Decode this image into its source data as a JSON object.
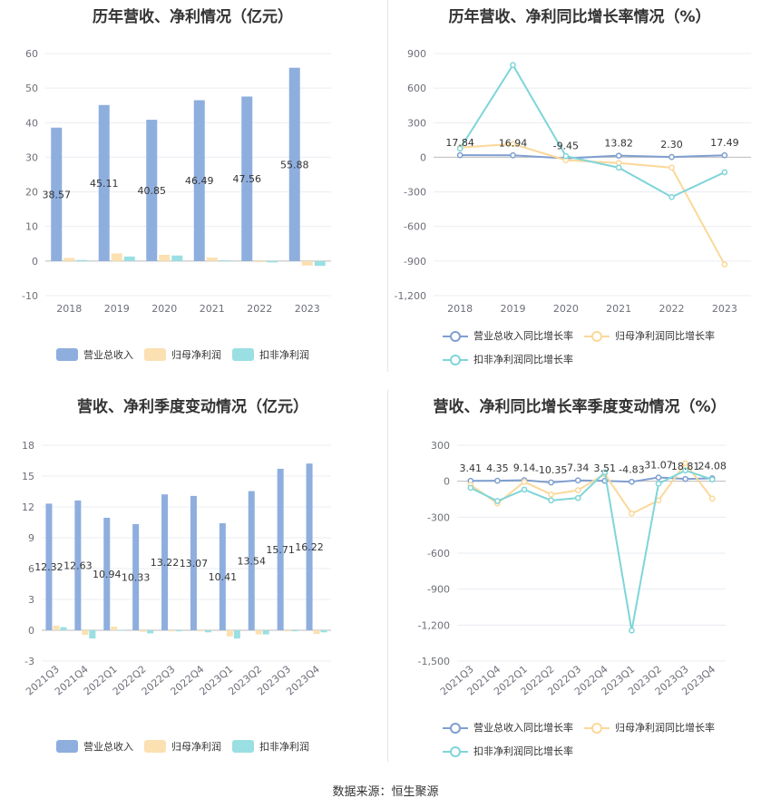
{
  "source_note": "数据来源：恒生聚源",
  "chart_data": [
    {
      "id": "c1",
      "type": "bar",
      "title": "历年营收、净利情况（亿元）",
      "categories": [
        "2018",
        "2019",
        "2020",
        "2021",
        "2022",
        "2023"
      ],
      "ylim": [
        -10,
        60
      ],
      "yticks": [
        -10,
        0,
        10,
        20,
        30,
        40,
        50,
        60
      ],
      "series": [
        {
          "name": "营业总收入",
          "color": "#8eaede",
          "values": [
            38.57,
            45.11,
            40.85,
            46.49,
            47.56,
            55.88
          ],
          "labels": [
            "38.57",
            "45.11",
            "40.85",
            "46.49",
            "47.56",
            "55.88"
          ]
        },
        {
          "name": "归母净利润",
          "color": "#fbe0b2",
          "values": [
            0.9,
            2.2,
            1.8,
            1.0,
            -0.3,
            -1.3
          ]
        },
        {
          "name": "扣非净利润",
          "color": "#9adfe2",
          "values": [
            0.3,
            1.3,
            1.6,
            0.2,
            -0.4,
            -1.4
          ]
        }
      ],
      "legend": "bottom"
    },
    {
      "id": "c2",
      "type": "line",
      "title": "历年营收、净利同比增长率情况（%）",
      "categories": [
        "2018",
        "2019",
        "2020",
        "2021",
        "2022",
        "2023"
      ],
      "ylim": [
        -1200,
        900
      ],
      "yticks": [
        -1200,
        -900,
        -600,
        -300,
        0,
        300,
        600,
        900
      ],
      "series": [
        {
          "name": "营业总收入同比增长率",
          "color": "#7f9fd0",
          "values": [
            17.84,
            16.94,
            -9.45,
            13.82,
            2.3,
            17.49
          ],
          "labels": [
            "17.84",
            "16.94",
            "-9.45",
            "13.82",
            "2.30",
            "17.49"
          ]
        },
        {
          "name": "归母净利润同比增长率",
          "color": "#fbd89a",
          "values": [
            85,
            115,
            -25,
            -50,
            -90,
            -930
          ]
        },
        {
          "name": "扣非净利润同比增长率",
          "color": "#7fd5d8",
          "values": [
            75,
            800,
            10,
            -90,
            -345,
            -130
          ]
        }
      ],
      "legend": "bottom"
    },
    {
      "id": "c3",
      "type": "bar",
      "title": "营收、净利季度变动情况（亿元）",
      "categories": [
        "2021Q3",
        "2021Q4",
        "2022Q1",
        "2022Q2",
        "2022Q3",
        "2022Q4",
        "2023Q1",
        "2023Q2",
        "2023Q3",
        "2023Q4"
      ],
      "ylim": [
        -3,
        18
      ],
      "yticks": [
        -3,
        0,
        3,
        6,
        9,
        12,
        15,
        18
      ],
      "series": [
        {
          "name": "营业总收入",
          "color": "#8eaede",
          "values": [
            12.32,
            12.63,
            10.94,
            10.33,
            13.22,
            13.07,
            10.41,
            13.54,
            15.71,
            16.22
          ],
          "labels": [
            "12.32",
            "12.63",
            "10.94",
            "10.33",
            "13.22",
            "13.07",
            "10.41",
            "13.54",
            "15.71",
            "16.22"
          ]
        },
        {
          "name": "归母净利润",
          "color": "#fbe0b2",
          "values": [
            0.45,
            -0.45,
            0.35,
            -0.15,
            -0.1,
            -0.1,
            -0.6,
            -0.4,
            -0.1,
            -0.35
          ]
        },
        {
          "name": "扣非净利润",
          "color": "#9adfe2",
          "values": [
            0.3,
            -0.8,
            0.05,
            -0.3,
            -0.1,
            -0.2,
            -0.8,
            -0.4,
            -0.1,
            -0.2
          ]
        }
      ],
      "legend": "bottom"
    },
    {
      "id": "c4",
      "type": "line",
      "title": "营收、净利同比增长率季度变动情况（%）",
      "categories": [
        "2021Q3",
        "2021Q4",
        "2022Q1",
        "2022Q2",
        "2022Q3",
        "2022Q4",
        "2023Q1",
        "2023Q2",
        "2023Q3",
        "2023Q4"
      ],
      "ylim": [
        -1500,
        300
      ],
      "yticks": [
        -1500,
        -1200,
        -900,
        -600,
        -300,
        0,
        300
      ],
      "series": [
        {
          "name": "营业总收入同比增长率",
          "color": "#7f9fd0",
          "values": [
            3.41,
            4.35,
            9.14,
            -10.35,
            7.34,
            3.51,
            -4.83,
            31.07,
            18.81,
            24.08
          ],
          "labels": [
            "3.41",
            "4.35",
            "9.14",
            "-10.35",
            "7.34",
            "3.51",
            "-4.83",
            "31.07",
            "18.81",
            "24.08"
          ]
        },
        {
          "name": "归母净利润同比增长率",
          "color": "#fbd89a",
          "values": [
            -30,
            -185,
            -5,
            -110,
            -75,
            60,
            -270,
            -160,
            150,
            -145
          ]
        },
        {
          "name": "扣非净利润同比增长率",
          "color": "#7fd5d8",
          "values": [
            -55,
            -165,
            -70,
            -160,
            -140,
            75,
            -1245,
            -20,
            90,
            15
          ]
        }
      ],
      "legend": "bottom"
    }
  ]
}
